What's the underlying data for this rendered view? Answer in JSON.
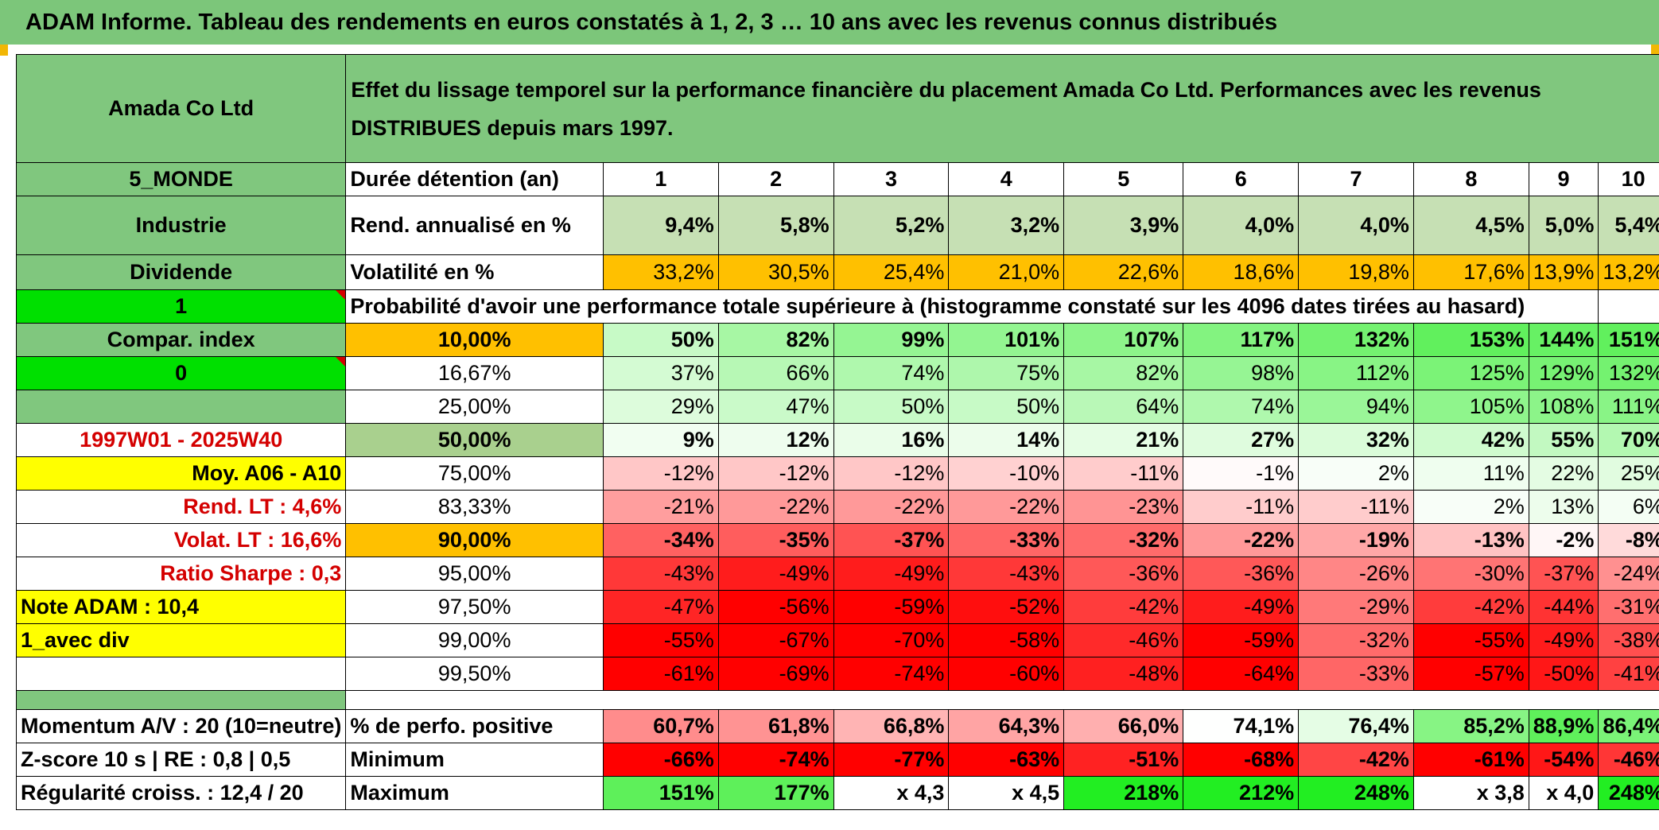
{
  "title": "ADAM Informe. Tableau des rendements en euros constatés à 1, 2, 3 … 10 ans avec les revenus connus distribués",
  "header": {
    "company": "Amada Co Ltd",
    "description": "Effet du lissage temporel sur la performance financière du placement Amada Co Ltd. Performances avec les revenus DISTRIBUES depuis mars 1997."
  },
  "colors": {
    "title_green": "#7cc67a",
    "header_green": "#80c77e",
    "bright_green": "#00e000",
    "orange": "#ffc000",
    "yellow": "#ffff00",
    "light_green_rend": "#c6e0b4",
    "median_green": "#a9d08e",
    "red_text": "#d40000"
  },
  "duration": {
    "label": "Durée détention (an)",
    "years": [
      "1",
      "2",
      "3",
      "4",
      "5",
      "6",
      "7",
      "8",
      "9",
      "10"
    ]
  },
  "rend": {
    "label": "Rend. annualisé en %",
    "values": [
      "9,4%",
      "5,8%",
      "5,2%",
      "3,2%",
      "3,9%",
      "4,0%",
      "4,0%",
      "4,5%",
      "5,0%",
      "5,4%"
    ]
  },
  "vol": {
    "label": "Volatilité en %",
    "values": [
      "33,2%",
      "30,5%",
      "25,4%",
      "21,0%",
      "22,6%",
      "18,6%",
      "19,8%",
      "17,6%",
      "13,9%",
      "13,2%"
    ]
  },
  "prob_header": "Probabilité d'avoir une performance totale supérieure à (histogramme constaté sur les 4096 dates tirées au hasard)",
  "left": {
    "zone": "5_MONDE",
    "sector": "Industrie",
    "type": "Dividende",
    "one": "1",
    "compar": "Compar. index",
    "zero": "0",
    "period": "1997W01 - 2025W40",
    "moy": "Moy. A06 - A10",
    "rend_lt": "Rend. LT :   4,6%",
    "volat_lt": "Volat. LT :   16,6%",
    "sharpe": "Ratio Sharpe :   0,3",
    "note": "Note ADAM : 10,4",
    "avec_div": "1_avec div"
  },
  "perc_rows": [
    {
      "label": "10,00%",
      "values": [
        "50%",
        "82%",
        "99%",
        "101%",
        "107%",
        "117%",
        "132%",
        "153%",
        "144%",
        "151%"
      ]
    },
    {
      "label": "16,67%",
      "values": [
        "37%",
        "66%",
        "74%",
        "75%",
        "82%",
        "98%",
        "112%",
        "125%",
        "129%",
        "132%"
      ]
    },
    {
      "label": "25,00%",
      "values": [
        "29%",
        "47%",
        "50%",
        "50%",
        "64%",
        "74%",
        "94%",
        "105%",
        "108%",
        "111%"
      ]
    },
    {
      "label": "50,00%",
      "values": [
        "9%",
        "12%",
        "16%",
        "14%",
        "21%",
        "27%",
        "32%",
        "42%",
        "55%",
        "70%"
      ]
    },
    {
      "label": "75,00%",
      "values": [
        "-12%",
        "-12%",
        "-12%",
        "-10%",
        "-11%",
        "-1%",
        "2%",
        "11%",
        "22%",
        "25%"
      ]
    },
    {
      "label": "83,33%",
      "values": [
        "-21%",
        "-22%",
        "-22%",
        "-22%",
        "-23%",
        "-11%",
        "-11%",
        "2%",
        "13%",
        "6%"
      ]
    },
    {
      "label": "90,00%",
      "values": [
        "-34%",
        "-35%",
        "-37%",
        "-33%",
        "-32%",
        "-22%",
        "-19%",
        "-13%",
        "-2%",
        "-8%"
      ]
    },
    {
      "label": "95,00%",
      "values": [
        "-43%",
        "-49%",
        "-49%",
        "-43%",
        "-36%",
        "-36%",
        "-26%",
        "-30%",
        "-37%",
        "-24%"
      ]
    },
    {
      "label": "97,50%",
      "values": [
        "-47%",
        "-56%",
        "-59%",
        "-52%",
        "-42%",
        "-49%",
        "-29%",
        "-42%",
        "-44%",
        "-31%"
      ]
    },
    {
      "label": "99,00%",
      "values": [
        "-55%",
        "-67%",
        "-70%",
        "-58%",
        "-46%",
        "-59%",
        "-32%",
        "-55%",
        "-49%",
        "-38%"
      ]
    },
    {
      "label": "99,50%",
      "values": [
        "-61%",
        "-69%",
        "-74%",
        "-60%",
        "-48%",
        "-64%",
        "-33%",
        "-57%",
        "-50%",
        "-41%"
      ]
    }
  ],
  "bottom": {
    "momentum": "Momentum A/V : 20 (10=neutre)",
    "zscore": "Z-score 10 s | RE : 0,8 | 0,5",
    "regularite": "Régularité croiss. : 12,4 / 20",
    "pos_label": "% de perfo. positive",
    "pos_values": [
      "60,7%",
      "61,8%",
      "66,8%",
      "64,3%",
      "66,0%",
      "74,1%",
      "76,4%",
      "85,2%",
      "88,9%",
      "86,4%"
    ],
    "min_label": "Minimum",
    "min_values": [
      "-66%",
      "-74%",
      "-77%",
      "-63%",
      "-51%",
      "-68%",
      "-42%",
      "-61%",
      "-54%",
      "-46%"
    ],
    "max_label": "Maximum",
    "max_values": [
      "151%",
      "177%",
      "x 4,3",
      "x 4,5",
      "218%",
      "212%",
      "248%",
      "x 3,8",
      "x 4,0",
      "248%"
    ]
  }
}
